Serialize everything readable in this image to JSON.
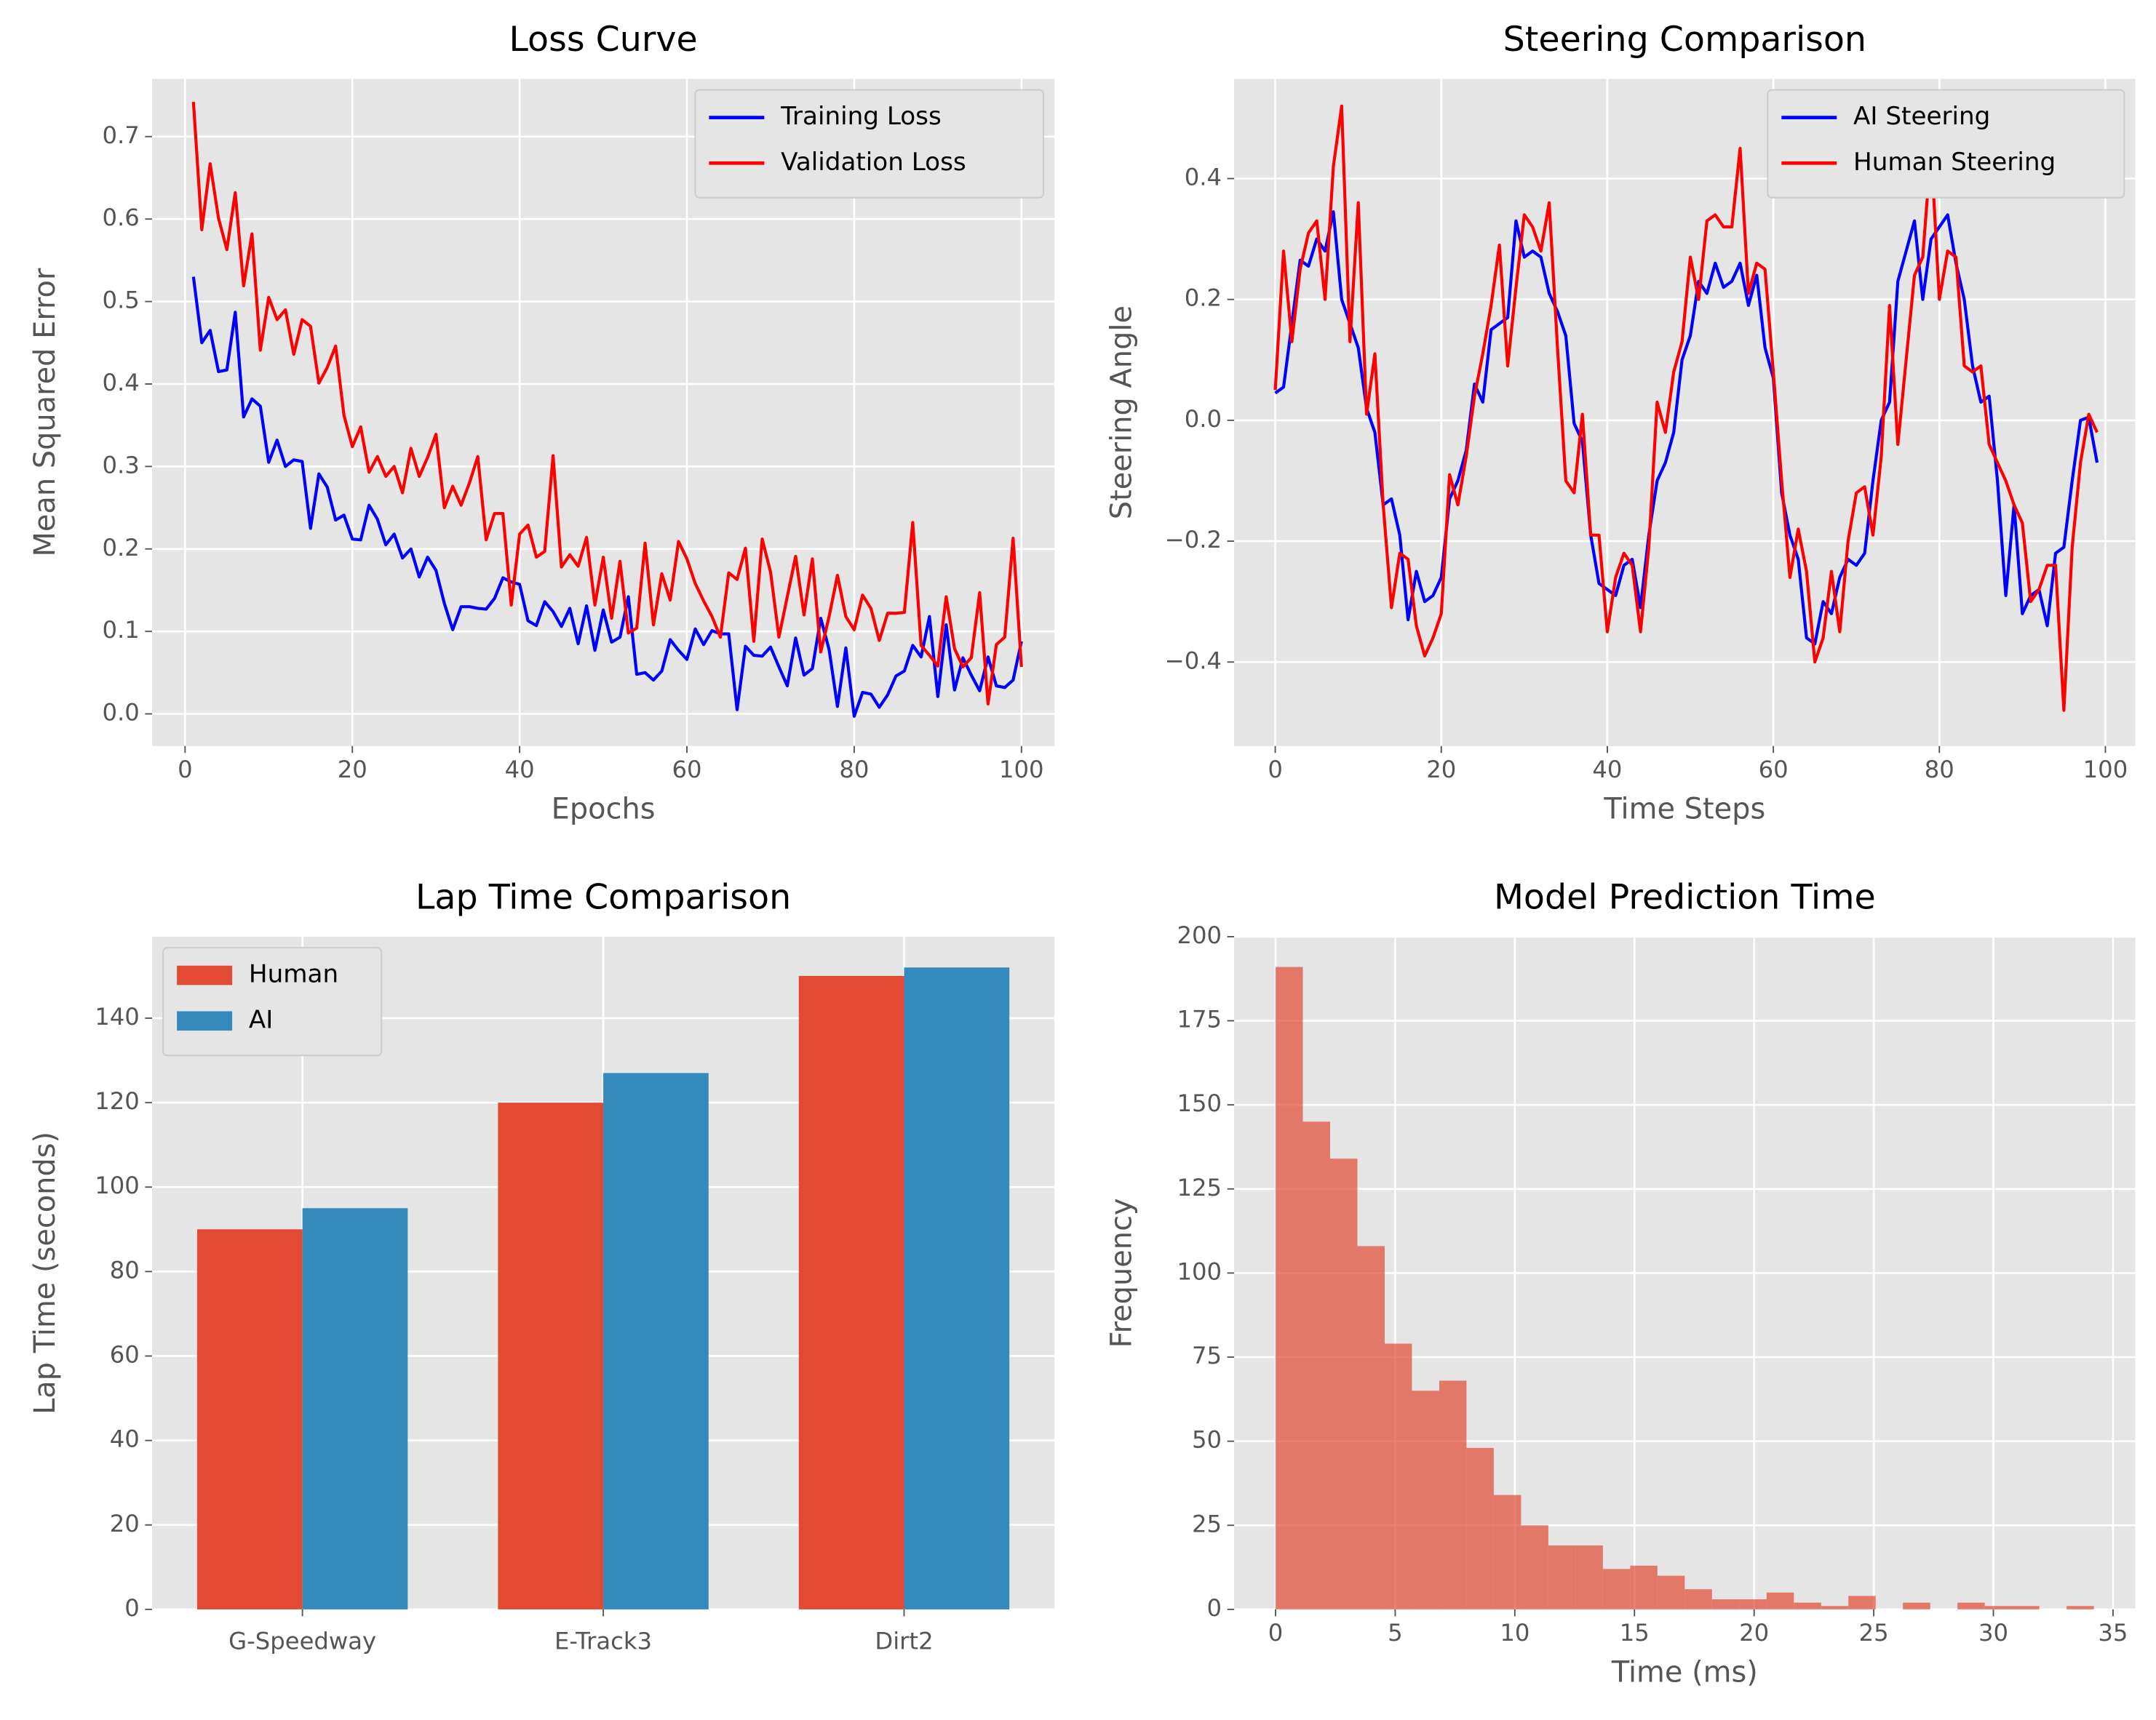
{
  "chart_data": [
    {
      "type": "line",
      "title": "Loss Curve",
      "xlabel": "Epochs",
      "ylabel": "Mean Squared Error",
      "x": [
        1,
        2,
        3,
        4,
        5,
        6,
        7,
        8,
        9,
        10,
        11,
        12,
        13,
        14,
        15,
        16,
        17,
        18,
        19,
        20,
        21,
        22,
        23,
        24,
        25,
        26,
        27,
        28,
        29,
        30,
        31,
        32,
        33,
        34,
        35,
        36,
        37,
        38,
        39,
        40,
        41,
        42,
        43,
        44,
        45,
        46,
        47,
        48,
        49,
        50,
        51,
        52,
        53,
        54,
        55,
        56,
        57,
        58,
        59,
        60,
        61,
        62,
        63,
        64,
        65,
        66,
        67,
        68,
        69,
        70,
        71,
        72,
        73,
        74,
        75,
        76,
        77,
        78,
        79,
        80,
        81,
        82,
        83,
        84,
        85,
        86,
        87,
        88,
        89,
        90,
        91,
        92,
        93,
        94,
        95,
        96,
        97,
        98,
        99,
        100
      ],
      "series": [
        {
          "name": "Training Loss",
          "color": "#0000ff",
          "values": [
            0.53,
            0.45,
            0.465,
            0.415,
            0.417,
            0.487,
            0.36,
            0.382,
            0.373,
            0.305,
            0.332,
            0.3,
            0.308,
            0.306,
            0.225,
            0.291,
            0.275,
            0.235,
            0.241,
            0.212,
            0.211,
            0.253,
            0.236,
            0.205,
            0.218,
            0.189,
            0.2,
            0.166,
            0.19,
            0.174,
            0.134,
            0.102,
            0.13,
            0.13,
            0.128,
            0.127,
            0.14,
            0.165,
            0.16,
            0.157,
            0.113,
            0.107,
            0.136,
            0.124,
            0.106,
            0.128,
            0.085,
            0.131,
            0.077,
            0.126,
            0.087,
            0.093,
            0.142,
            0.048,
            0.05,
            0.041,
            0.052,
            0.09,
            0.077,
            0.066,
            0.103,
            0.084,
            0.101,
            0.097,
            0.097,
            0.005,
            0.082,
            0.071,
            0.07,
            0.081,
            0.057,
            0.034,
            0.092,
            0.047,
            0.055,
            0.116,
            0.078,
            0.009,
            0.08,
            -0.003,
            0.026,
            0.024,
            0.008,
            0.023,
            0.046,
            0.052,
            0.083,
            0.069,
            0.118,
            0.021,
            0.108,
            0.029,
            0.068,
            0.047,
            0.028,
            0.069,
            0.034,
            0.032,
            0.041,
            0.088
          ]
        },
        {
          "name": "Validation Loss",
          "color": "#ff0000",
          "values": [
            0.742,
            0.587,
            0.667,
            0.601,
            0.563,
            0.632,
            0.519,
            0.582,
            0.441,
            0.505,
            0.478,
            0.49,
            0.436,
            0.478,
            0.47,
            0.401,
            0.42,
            0.446,
            0.362,
            0.324,
            0.348,
            0.293,
            0.312,
            0.288,
            0.3,
            0.268,
            0.322,
            0.288,
            0.311,
            0.339,
            0.25,
            0.276,
            0.253,
            0.28,
            0.312,
            0.211,
            0.243,
            0.243,
            0.132,
            0.218,
            0.229,
            0.19,
            0.197,
            0.313,
            0.178,
            0.193,
            0.179,
            0.214,
            0.132,
            0.19,
            0.116,
            0.185,
            0.098,
            0.104,
            0.207,
            0.108,
            0.17,
            0.138,
            0.209,
            0.188,
            0.158,
            0.137,
            0.118,
            0.093,
            0.171,
            0.163,
            0.201,
            0.088,
            0.212,
            0.172,
            0.093,
            0.142,
            0.191,
            0.12,
            0.188,
            0.075,
            0.118,
            0.168,
            0.118,
            0.102,
            0.144,
            0.128,
            0.089,
            0.122,
            0.122,
            0.123,
            0.232,
            0.083,
            0.071,
            0.058,
            0.142,
            0.079,
            0.057,
            0.068,
            0.147,
            0.012,
            0.084,
            0.093,
            0.213,
            0.057
          ]
        }
      ],
      "xlim": [
        -3.95,
        103.95
      ],
      "xticks": [
        0,
        20,
        40,
        60,
        80,
        100
      ],
      "ylim": [
        -0.039,
        0.77
      ],
      "yticks": [
        {
          "value": 0,
          "label": "0.0"
        },
        0.1,
        0.2,
        0.3,
        0.4,
        0.5,
        0.6,
        0.7
      ],
      "grid": true,
      "legend": "upper right"
    },
    {
      "type": "line",
      "title": "Steering Comparison",
      "xlabel": "Time Steps",
      "ylabel": "Steering Angle",
      "x": [
        0,
        1,
        2,
        3,
        4,
        5,
        6,
        7,
        8,
        9,
        10,
        11,
        12,
        13,
        14,
        15,
        16,
        17,
        18,
        19,
        20,
        21,
        22,
        23,
        24,
        25,
        26,
        27,
        28,
        29,
        30,
        31,
        32,
        33,
        34,
        35,
        36,
        37,
        38,
        39,
        40,
        41,
        42,
        43,
        44,
        45,
        46,
        47,
        48,
        49,
        50,
        51,
        52,
        53,
        54,
        55,
        56,
        57,
        58,
        59,
        60,
        61,
        62,
        63,
        64,
        65,
        66,
        67,
        68,
        69,
        70,
        71,
        72,
        73,
        74,
        75,
        76,
        77,
        78,
        79,
        80,
        81,
        82,
        83,
        84,
        85,
        86,
        87,
        88,
        89,
        90,
        91,
        92,
        93,
        94,
        95,
        96,
        97,
        98,
        99
      ],
      "series": [
        {
          "name": "AI Steering",
          "color": "#0000ff",
          "values": [
            0.045,
            0.055,
            0.16,
            0.265,
            0.255,
            0.3,
            0.28,
            0.345,
            0.2,
            0.16,
            0.12,
            0.02,
            -0.02,
            -0.14,
            -0.13,
            -0.19,
            -0.33,
            -0.25,
            -0.3,
            -0.29,
            -0.26,
            -0.13,
            -0.1,
            -0.05,
            0.06,
            0.03,
            0.15,
            0.16,
            0.17,
            0.33,
            0.27,
            0.28,
            0.27,
            0.21,
            0.18,
            0.14,
            -0.005,
            -0.035,
            -0.19,
            -0.27,
            -0.28,
            -0.29,
            -0.24,
            -0.23,
            -0.31,
            -0.19,
            -0.1,
            -0.07,
            -0.02,
            0.1,
            0.14,
            0.23,
            0.21,
            0.26,
            0.22,
            0.23,
            0.26,
            0.19,
            0.24,
            0.12,
            0.07,
            -0.12,
            -0.19,
            -0.23,
            -0.36,
            -0.37,
            -0.3,
            -0.32,
            -0.26,
            -0.23,
            -0.24,
            -0.22,
            -0.1,
            0.0,
            0.03,
            0.23,
            0.28,
            0.33,
            0.2,
            0.3,
            0.32,
            0.34,
            0.26,
            0.2,
            0.09,
            0.03,
            0.04,
            -0.1,
            -0.29,
            -0.14,
            -0.32,
            -0.29,
            -0.28,
            -0.34,
            -0.22,
            -0.21,
            -0.1,
            0.0,
            0.005,
            -0.07
          ]
        },
        {
          "name": "Human Steering",
          "color": "#ff0000",
          "values": [
            0.05,
            0.28,
            0.13,
            0.25,
            0.31,
            0.33,
            0.2,
            0.42,
            0.52,
            0.13,
            0.36,
            0.01,
            0.11,
            -0.14,
            -0.31,
            -0.22,
            -0.23,
            -0.34,
            -0.39,
            -0.36,
            -0.32,
            -0.09,
            -0.14,
            -0.06,
            0.04,
            0.11,
            0.19,
            0.29,
            0.09,
            0.22,
            0.34,
            0.32,
            0.28,
            0.36,
            0.12,
            -0.1,
            -0.12,
            0.01,
            -0.19,
            -0.19,
            -0.35,
            -0.26,
            -0.22,
            -0.24,
            -0.35,
            -0.21,
            0.03,
            -0.02,
            0.08,
            0.13,
            0.27,
            0.2,
            0.33,
            0.34,
            0.32,
            0.32,
            0.45,
            0.21,
            0.26,
            0.25,
            0.08,
            -0.1,
            -0.26,
            -0.18,
            -0.25,
            -0.4,
            -0.36,
            -0.25,
            -0.35,
            -0.2,
            -0.12,
            -0.11,
            -0.19,
            -0.06,
            0.19,
            -0.04,
            0.1,
            0.24,
            0.27,
            0.45,
            0.2,
            0.28,
            0.27,
            0.09,
            0.08,
            0.09,
            -0.04,
            -0.07,
            -0.1,
            -0.14,
            -0.17,
            -0.3,
            -0.28,
            -0.24,
            -0.24,
            -0.48,
            -0.21,
            -0.07,
            0.01,
            -0.02
          ]
        }
      ],
      "xlim": [
        -4.95,
        103.6
      ],
      "xticks": [
        0,
        20,
        40,
        60,
        80,
        100
      ],
      "ylim": [
        -0.539,
        0.565
      ],
      "yticks": [
        {
          "value": -0.4,
          "label": "−0.4"
        },
        {
          "value": -0.2,
          "label": "−0.2"
        },
        {
          "value": 0,
          "label": "0.0"
        },
        0.2,
        0.4
      ],
      "grid": true,
      "legend": "upper right"
    },
    {
      "type": "bar",
      "title": "Lap Time Comparison",
      "ylabel": "Lap Time (seconds)",
      "categories": [
        "G-Speedway",
        "E-Track3",
        "Dirt2"
      ],
      "series": [
        {
          "name": "Human",
          "color": "#E24A33",
          "values": [
            90,
            120,
            150
          ]
        },
        {
          "name": "AI",
          "color": "#348ABD",
          "values": [
            95,
            127,
            152
          ]
        }
      ],
      "ylim": [
        0,
        159.3
      ],
      "yticks": [
        0,
        20,
        40,
        60,
        80,
        100,
        120,
        140
      ],
      "grid": true,
      "legend": "upper left"
    },
    {
      "type": "histogram",
      "title": "Model Prediction Time",
      "xlabel": "Time (ms)",
      "ylabel": "Frequency",
      "bins": [
        0,
        1.14,
        2.28,
        3.42,
        4.56,
        5.7,
        6.84,
        7.98,
        9.12,
        10.26,
        11.4,
        12.54,
        13.68,
        14.82,
        15.96,
        17.1,
        18.24,
        19.38,
        20.52,
        21.66,
        22.8,
        23.94,
        25.08,
        26.22,
        27.36,
        28.5,
        29.64,
        30.78,
        31.92,
        33.06,
        34.2
      ],
      "values": [
        191,
        145,
        134,
        108,
        79,
        65,
        68,
        48,
        34,
        25,
        19,
        19,
        12,
        13,
        10,
        6,
        3,
        3,
        5,
        2,
        1,
        4,
        0,
        2,
        0,
        2,
        1,
        1,
        0,
        1
      ],
      "color": "#E24A33",
      "xlim": [
        -1.73,
        35.93
      ],
      "xticks": [
        0,
        5,
        10,
        15,
        20,
        25,
        30,
        35
      ],
      "ylim": [
        0,
        200
      ],
      "yticks": [
        0,
        25,
        50,
        75,
        100,
        125,
        150,
        175,
        200
      ],
      "grid": true
    }
  ]
}
